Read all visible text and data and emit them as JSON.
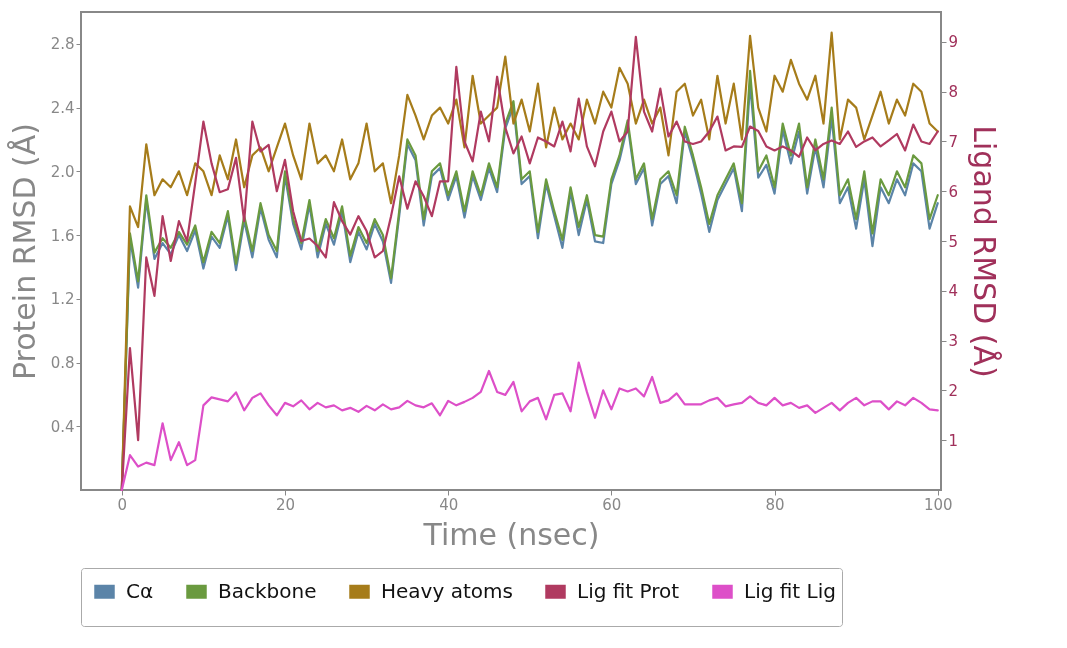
{
  "chart_data": {
    "type": "line",
    "xlabel": "Time (nsec)",
    "ylabel": "Protein RMSD (Å)",
    "y2label": "Ligand RMSD (Å)",
    "legend": "bottom",
    "line_style": "solid",
    "xlim": [
      -5,
      100.4
    ],
    "ylim": [
      0,
      3.0
    ],
    "y2lim": [
      0,
      9.6
    ],
    "xticks": [
      0,
      20,
      40,
      60,
      80,
      100
    ],
    "yticks": [
      0.4,
      0.8,
      1.2,
      1.6,
      {
        "value": 2,
        "label": "2.0"
      },
      2.4,
      2.8
    ],
    "y2ticks": [
      1,
      2,
      3,
      4,
      5,
      6,
      7,
      8,
      9
    ],
    "x": [
      0,
      1,
      2,
      3,
      4,
      5,
      6,
      7,
      8,
      9,
      10,
      11,
      12,
      13,
      14,
      15,
      16,
      17,
      18,
      19,
      20,
      21,
      22,
      23,
      24,
      25,
      26,
      27,
      28,
      29,
      30,
      31,
      32,
      33,
      34,
      35,
      36,
      37,
      38,
      39,
      40,
      41,
      42,
      43,
      44,
      45,
      46,
      47,
      48,
      49,
      50,
      51,
      52,
      53,
      54,
      55,
      56,
      57,
      58,
      59,
      60,
      61,
      62,
      63,
      64,
      65,
      66,
      67,
      68,
      69,
      70,
      71,
      72,
      73,
      74,
      75,
      76,
      77,
      78,
      79,
      80,
      81,
      82,
      83,
      84,
      85,
      86,
      87,
      88,
      89,
      90,
      91,
      92,
      93,
      94,
      95,
      96,
      97,
      98,
      99,
      100
    ],
    "series": [
      {
        "name": "Cα",
        "color": "#5b84a8",
        "values": [
          0,
          1.58,
          1.27,
          1.82,
          1.45,
          1.55,
          1.48,
          1.6,
          1.5,
          1.63,
          1.39,
          1.59,
          1.52,
          1.72,
          1.38,
          1.69,
          1.46,
          1.77,
          1.57,
          1.46,
          1.97,
          1.67,
          1.51,
          1.79,
          1.46,
          1.67,
          1.54,
          1.75,
          1.43,
          1.62,
          1.51,
          1.67,
          1.56,
          1.3,
          1.72,
          2.17,
          2.07,
          1.66,
          1.97,
          2.02,
          1.82,
          1.97,
          1.71,
          1.97,
          1.82,
          2.02,
          1.87,
          2.27,
          2.41,
          1.92,
          1.97,
          1.58,
          1.92,
          1.72,
          1.52,
          1.87,
          1.6,
          1.82,
          1.56,
          1.55,
          1.92,
          2.07,
          2.29,
          1.92,
          2.02,
          1.66,
          1.92,
          1.97,
          1.8,
          2.25,
          2.07,
          1.86,
          1.62,
          1.82,
          1.92,
          2.02,
          1.75,
          2.55,
          1.96,
          2.04,
          1.86,
          2.26,
          2.05,
          2.25,
          1.86,
          2.15,
          1.9,
          2.34,
          1.8,
          1.9,
          1.64,
          1.95,
          1.53,
          1.9,
          1.8,
          1.95,
          1.85,
          2.05,
          2.0,
          1.64,
          1.8
        ]
      },
      {
        "name": "Backbone",
        "color": "#6a9a3f",
        "values": [
          0,
          1.61,
          1.31,
          1.85,
          1.49,
          1.58,
          1.52,
          1.62,
          1.54,
          1.66,
          1.43,
          1.62,
          1.55,
          1.75,
          1.42,
          1.72,
          1.5,
          1.8,
          1.6,
          1.5,
          2.0,
          1.7,
          1.55,
          1.82,
          1.5,
          1.7,
          1.58,
          1.78,
          1.47,
          1.65,
          1.55,
          1.7,
          1.6,
          1.33,
          1.75,
          2.2,
          2.1,
          1.7,
          2.0,
          2.05,
          1.85,
          2.0,
          1.75,
          2.0,
          1.85,
          2.05,
          1.9,
          2.3,
          2.44,
          1.95,
          2.0,
          1.62,
          1.95,
          1.75,
          1.57,
          1.9,
          1.65,
          1.85,
          1.6,
          1.59,
          1.95,
          2.1,
          2.32,
          1.95,
          2.05,
          1.7,
          1.95,
          2.0,
          1.85,
          2.28,
          2.1,
          1.9,
          1.67,
          1.85,
          1.95,
          2.05,
          1.8,
          2.63,
          2.0,
          2.1,
          1.9,
          2.3,
          2.1,
          2.3,
          1.9,
          2.2,
          1.95,
          2.4,
          1.85,
          1.95,
          1.7,
          2.0,
          1.61,
          1.95,
          1.85,
          2.0,
          1.9,
          2.1,
          2.05,
          1.7,
          1.85
        ]
      },
      {
        "name": "Heavy atoms",
        "color": "#a67c1a",
        "values": [
          0,
          1.78,
          1.65,
          2.17,
          1.85,
          1.95,
          1.9,
          2.0,
          1.85,
          2.05,
          2.0,
          1.85,
          2.1,
          1.95,
          2.2,
          1.9,
          2.1,
          2.15,
          2.0,
          2.15,
          2.3,
          2.1,
          1.95,
          2.3,
          2.05,
          2.1,
          2.0,
          2.2,
          1.95,
          2.05,
          2.3,
          2.0,
          2.05,
          1.8,
          2.1,
          2.48,
          2.35,
          2.2,
          2.35,
          2.4,
          2.3,
          2.45,
          2.15,
          2.6,
          2.3,
          2.35,
          2.4,
          2.72,
          2.3,
          2.45,
          2.25,
          2.55,
          2.15,
          2.4,
          2.2,
          2.3,
          2.2,
          2.45,
          2.3,
          2.5,
          2.4,
          2.65,
          2.55,
          2.3,
          2.45,
          2.3,
          2.4,
          2.1,
          2.5,
          2.55,
          2.35,
          2.45,
          2.2,
          2.6,
          2.3,
          2.55,
          2.2,
          2.85,
          2.4,
          2.25,
          2.6,
          2.5,
          2.7,
          2.55,
          2.45,
          2.6,
          2.3,
          2.87,
          2.2,
          2.45,
          2.4,
          2.2,
          2.35,
          2.5,
          2.3,
          2.45,
          2.35,
          2.55,
          2.5,
          2.3,
          2.25
        ]
      },
      {
        "name": "Lig fit Prot",
        "color": "#b03a60",
        "axis": "y2",
        "values": [
          0,
          2.85,
          1.0,
          4.67,
          3.9,
          5.5,
          4.6,
          5.4,
          5.0,
          6.17,
          7.4,
          6.56,
          5.98,
          6.04,
          6.67,
          5.4,
          7.4,
          6.8,
          6.93,
          6.0,
          6.63,
          5.6,
          5.0,
          5.05,
          4.9,
          4.67,
          5.78,
          5.4,
          5.13,
          5.5,
          5.2,
          4.67,
          4.8,
          5.5,
          6.3,
          5.65,
          6.2,
          5.9,
          5.5,
          6.2,
          6.2,
          8.5,
          7.0,
          6.6,
          7.6,
          7.0,
          8.3,
          7.28,
          6.76,
          7.1,
          6.56,
          7.08,
          7.0,
          6.9,
          7.4,
          6.8,
          7.86,
          6.9,
          6.5,
          7.2,
          7.6,
          7.0,
          7.2,
          9.1,
          7.6,
          7.2,
          8.06,
          7.1,
          7.4,
          7.0,
          6.95,
          7.0,
          7.2,
          7.5,
          6.82,
          6.9,
          6.89,
          7.3,
          7.21,
          6.9,
          6.82,
          6.9,
          6.82,
          6.69,
          7.08,
          6.82,
          6.95,
          7.02,
          6.95,
          7.2,
          6.89,
          7.0,
          7.08,
          6.9,
          7.02,
          7.15,
          6.82,
          7.34,
          7.0,
          6.95,
          7.2
        ]
      },
      {
        "name": "Lig fit Lig",
        "color": "#dd4fc8",
        "axis": "y2",
        "values": [
          0,
          0.7,
          0.47,
          0.55,
          0.5,
          1.34,
          0.6,
          0.96,
          0.5,
          0.6,
          1.7,
          1.86,
          1.82,
          1.78,
          1.96,
          1.6,
          1.85,
          1.94,
          1.7,
          1.5,
          1.75,
          1.68,
          1.8,
          1.62,
          1.75,
          1.66,
          1.7,
          1.6,
          1.65,
          1.57,
          1.69,
          1.6,
          1.72,
          1.62,
          1.66,
          1.79,
          1.7,
          1.66,
          1.74,
          1.5,
          1.79,
          1.7,
          1.77,
          1.85,
          1.97,
          2.39,
          1.97,
          1.91,
          2.17,
          1.58,
          1.78,
          1.85,
          1.42,
          1.91,
          1.94,
          1.58,
          2.56,
          1.97,
          1.45,
          2.0,
          1.62,
          2.04,
          1.98,
          2.04,
          1.88,
          2.27,
          1.75,
          1.8,
          1.94,
          1.72,
          1.72,
          1.72,
          1.8,
          1.85,
          1.68,
          1.72,
          1.75,
          1.88,
          1.75,
          1.7,
          1.85,
          1.7,
          1.75,
          1.65,
          1.7,
          1.55,
          1.65,
          1.75,
          1.6,
          1.75,
          1.85,
          1.7,
          1.78,
          1.78,
          1.62,
          1.78,
          1.7,
          1.85,
          1.75,
          1.62,
          1.6
        ]
      }
    ]
  }
}
